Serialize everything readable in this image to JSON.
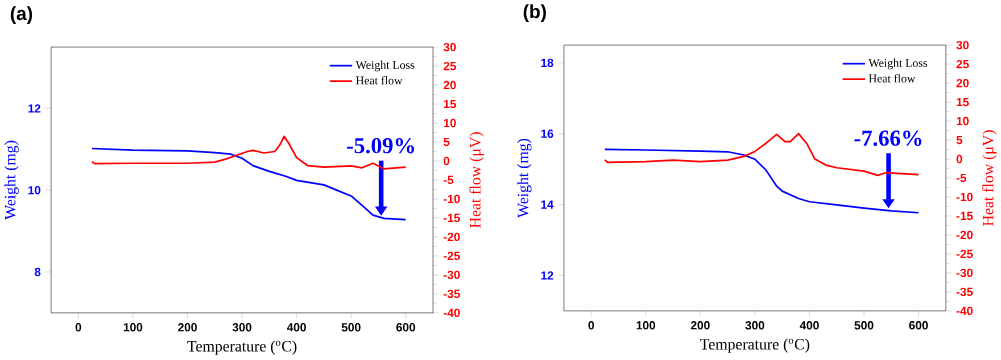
{
  "chart_data": [
    {
      "type": "line",
      "title": "(a)",
      "xlabel": "Temperature ($^{o}$C)",
      "ylabel": "Weight (mg)",
      "y2label": "Heat flow (μV)",
      "xlim": [
        -50,
        650
      ],
      "xticks": [
        0,
        100,
        200,
        300,
        400,
        500,
        600
      ],
      "ylim": [
        7,
        13.5
      ],
      "yticks": [
        8,
        10,
        12
      ],
      "y2lim": [
        -40,
        30
      ],
      "y2ticks": [
        -40,
        -35,
        -30,
        -25,
        -20,
        -15,
        -10,
        -5,
        0,
        5,
        10,
        15,
        20,
        25,
        30
      ],
      "legend": "top right",
      "annotations": [
        {
          "text": "-5.09%",
          "x": 555,
          "y": 9.31
        }
      ],
      "series": [
        {
          "name": "Weight Loss",
          "color": "#0000ff",
          "x": [
            25,
            100,
            200,
            250,
            280,
            300,
            320,
            350,
            380,
            400,
            450,
            470,
            500,
            520,
            540,
            560,
            600
          ],
          "values": [
            11.02,
            10.98,
            10.96,
            10.92,
            10.88,
            10.78,
            10.6,
            10.46,
            10.34,
            10.24,
            10.13,
            10.02,
            9.86,
            9.63,
            9.39,
            9.31,
            9.28
          ]
        },
        {
          "name": "Heat flow",
          "color": "#ff0000",
          "axis": "y2",
          "x": [
            25,
            30,
            100,
            200,
            250,
            270,
            290,
            310,
            320,
            340,
            360,
            370,
            377,
            385,
            400,
            420,
            450,
            500,
            520,
            540,
            550,
            560,
            600
          ],
          "values": [
            -0.2,
            -0.7,
            -0.6,
            -0.6,
            -0.3,
            0.5,
            1.5,
            2.5,
            2.8,
            2.1,
            2.5,
            4.4,
            6.5,
            4.8,
            0.9,
            -1.2,
            -1.6,
            -1.3,
            -1.8,
            -0.6,
            -1.3,
            -2.1,
            -1.6
          ]
        }
      ]
    },
    {
      "type": "line",
      "title": "(b)",
      "xlabel": "Temperature ($^{o}$C)",
      "ylabel": "Weight (mg)",
      "y2label": "Heat flow (μV)",
      "xlim": [
        -50,
        650
      ],
      "xticks": [
        0,
        100,
        200,
        300,
        400,
        500,
        600
      ],
      "ylim": [
        11,
        18.5
      ],
      "yticks": [
        12,
        14,
        16,
        18
      ],
      "y2lim": [
        -40,
        30
      ],
      "y2ticks": [
        -40,
        -35,
        -30,
        -25,
        -20,
        -15,
        -10,
        -5,
        0,
        5,
        10,
        15,
        20,
        25,
        30
      ],
      "legend": "top right",
      "annotations": [
        {
          "text": "-7.66%",
          "x": 545,
          "y": 13.82
        }
      ],
      "series": [
        {
          "name": "Weight Loss",
          "color": "#0000ff",
          "x": [
            25,
            100,
            200,
            250,
            280,
            300,
            320,
            340,
            350,
            380,
            400,
            450,
            500,
            550,
            600
          ],
          "values": [
            15.56,
            15.54,
            15.51,
            15.49,
            15.4,
            15.28,
            14.98,
            14.52,
            14.38,
            14.17,
            14.08,
            13.99,
            13.9,
            13.82,
            13.77
          ]
        },
        {
          "name": "Heat flow",
          "color": "#ff0000",
          "axis": "y2",
          "x": [
            25,
            30,
            100,
            150,
            200,
            250,
            280,
            300,
            320,
            340,
            355,
            365,
            380,
            395,
            410,
            430,
            450,
            500,
            525,
            540,
            560,
            600
          ],
          "values": [
            -0.2,
            -0.9,
            -0.7,
            -0.3,
            -0.7,
            -0.3,
            0.7,
            2.0,
            4.1,
            6.5,
            4.6,
            4.6,
            6.7,
            4.1,
            0,
            -1.6,
            -2.3,
            -3.2,
            -4.3,
            -3.6,
            -3.8,
            -4.1
          ]
        }
      ]
    }
  ]
}
